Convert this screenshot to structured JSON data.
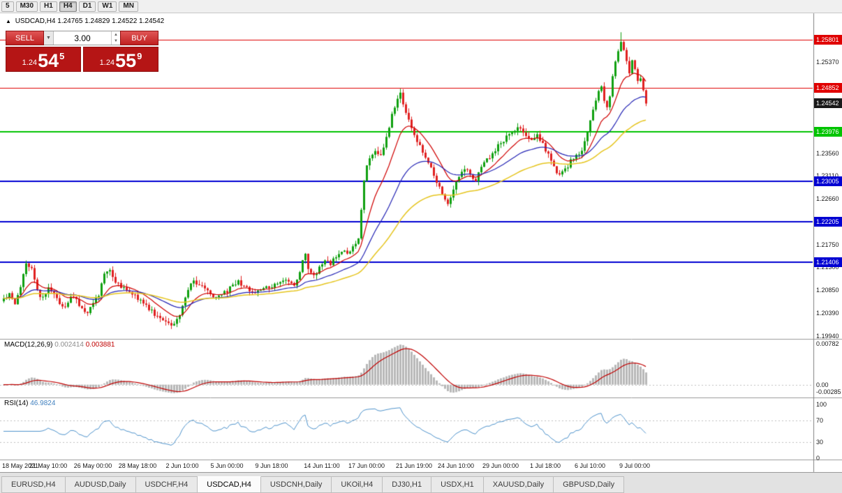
{
  "toolbar": {
    "timeframes": [
      {
        "label": "5",
        "active": false
      },
      {
        "label": "M30",
        "active": false
      },
      {
        "label": "H1",
        "active": false
      },
      {
        "label": "H4",
        "active": true
      },
      {
        "label": "D1",
        "active": false
      },
      {
        "label": "W1",
        "active": false
      },
      {
        "label": "MN",
        "active": false
      }
    ]
  },
  "chart": {
    "title": {
      "collapse_icon": "▲",
      "symbol": "USDCAD,H4",
      "ohlc": "1.24765 1.24829 1.24522 1.24542"
    },
    "trade_panel": {
      "sell_label": "SELL",
      "buy_label": "BUY",
      "volume": "3.00",
      "dropdown_icon": "▼",
      "spin_up_icon": "▲",
      "spin_down_icon": "▼",
      "sell_price": {
        "prefix": "1.24",
        "big": "54",
        "sup": "5"
      },
      "buy_price": {
        "prefix": "1.24",
        "big": "55",
        "sup": "9"
      }
    },
    "levels": [
      {
        "text": "1.25801",
        "v": 1.25801,
        "color": "#e00000",
        "lw": 1,
        "name": "resistance-level-tag"
      },
      {
        "text": "1.24852",
        "v": 1.24852,
        "color": "#e00000",
        "lw": 1,
        "name": "resistance-level-tag"
      },
      {
        "text": "1.24542",
        "v": 1.24542,
        "color": "#1a1a1a",
        "lw": 0,
        "name": "current-price-tag"
      },
      {
        "text": "1.23976",
        "v": 1.23976,
        "color": "#00c400",
        "lw": 2,
        "name": "pivot-level-tag"
      },
      {
        "text": "1.23005",
        "v": 1.23005,
        "color": "#0000d2",
        "lw": 2,
        "name": "support-level-tag"
      },
      {
        "text": "1.22205",
        "v": 1.22205,
        "color": "#0000d2",
        "lw": 2,
        "name": "support-level-tag"
      },
      {
        "text": "1.21406",
        "v": 1.21406,
        "color": "#0000d2",
        "lw": 2,
        "name": "support-level-tag"
      }
    ],
    "price_axis": [
      {
        "text": "1.25370",
        "v": 1.2537
      },
      {
        "text": "1.24010",
        "v": 1.2401
      },
      {
        "text": "1.23560",
        "v": 1.2356
      },
      {
        "text": "1.23110",
        "v": 1.2311
      },
      {
        "text": "1.22660",
        "v": 1.2266
      },
      {
        "text": "1.21750",
        "v": 1.2175
      },
      {
        "text": "1.21300",
        "v": 1.213
      },
      {
        "text": "1.20850",
        "v": 1.2085
      },
      {
        "text": "1.20390",
        "v": 1.2039
      },
      {
        "text": "1.19940",
        "v": 1.1994
      }
    ],
    "x_ticks": [
      {
        "label": "18 May 2021",
        "bar": 0
      },
      {
        "label": "21 May 10:00",
        "bar": 16
      },
      {
        "label": "26 May 00:00",
        "bar": 32
      },
      {
        "label": "28 May 18:00",
        "bar": 48
      },
      {
        "label": "2 Jun 10:00",
        "bar": 64
      },
      {
        "label": "5 Jun 00:00",
        "bar": 80
      },
      {
        "label": "9 Jun 18:00",
        "bar": 96
      },
      {
        "label": "14 Jun 11:00",
        "bar": 114
      },
      {
        "label": "17 Jun 00:00",
        "bar": 130
      },
      {
        "label": "21 Jun 19:00",
        "bar": 147
      },
      {
        "label": "24 Jun 10:00",
        "bar": 162
      },
      {
        "label": "29 Jun 00:00",
        "bar": 178
      },
      {
        "label": "1 Jul 18:00",
        "bar": 194
      },
      {
        "label": "6 Jul 10:00",
        "bar": 210
      },
      {
        "label": "9 Jul 00:00",
        "bar": 226
      }
    ],
    "candle_colors": {
      "up": "#10a010",
      "down": "#e02020"
    },
    "ma_lines": [
      {
        "name": "ma-fast",
        "period": 12,
        "color": "#d00000",
        "lw": 1.2
      },
      {
        "name": "ma-mid",
        "period": 30,
        "color": "#2525b5",
        "lw": 1.2
      },
      {
        "name": "ma-slow",
        "period": 60,
        "color": "#e6c51e",
        "lw": 1.5
      }
    ],
    "candle_gen": {
      "bars": 231,
      "noise": 0.0004,
      "wick": 0.001,
      "seed": 97,
      "spike_bar": 221,
      "spike_extra": 0.0013,
      "anchors": [
        [
          0,
          1.2068
        ],
        [
          2,
          1.2076
        ],
        [
          4,
          1.2058
        ],
        [
          6,
          1.2092
        ],
        [
          8,
          1.214
        ],
        [
          10,
          1.2126
        ],
        [
          12,
          1.2082
        ],
        [
          14,
          1.2068
        ],
        [
          16,
          1.2088
        ],
        [
          18,
          1.2076
        ],
        [
          20,
          1.2058
        ],
        [
          22,
          1.205
        ],
        [
          24,
          1.2072
        ],
        [
          26,
          1.2064
        ],
        [
          28,
          1.205
        ],
        [
          30,
          1.204
        ],
        [
          32,
          1.2056
        ],
        [
          34,
          1.2076
        ],
        [
          36,
          1.212
        ],
        [
          38,
          1.2126
        ],
        [
          40,
          1.2098
        ],
        [
          42,
          1.2092
        ],
        [
          44,
          1.2086
        ],
        [
          46,
          1.2078
        ],
        [
          48,
          1.2068
        ],
        [
          50,
          1.206
        ],
        [
          52,
          1.2048
        ],
        [
          54,
          1.2036
        ],
        [
          56,
          1.2026
        ],
        [
          58,
          1.202
        ],
        [
          60,
          1.2016
        ],
        [
          62,
          1.2024
        ],
        [
          64,
          1.2052
        ],
        [
          66,
          1.2086
        ],
        [
          68,
          1.2102
        ],
        [
          70,
          1.2096
        ],
        [
          72,
          1.2088
        ],
        [
          74,
          1.2076
        ],
        [
          76,
          1.2068
        ],
        [
          78,
          1.2076
        ],
        [
          80,
          1.2082
        ],
        [
          82,
          1.2096
        ],
        [
          84,
          1.2102
        ],
        [
          86,
          1.2092
        ],
        [
          88,
          1.2084
        ],
        [
          90,
          1.208
        ],
        [
          92,
          1.2088
        ],
        [
          94,
          1.2092
        ],
        [
          96,
          1.209
        ],
        [
          98,
          1.2098
        ],
        [
          100,
          1.2106
        ],
        [
          102,
          1.2098
        ],
        [
          104,
          1.2092
        ],
        [
          106,
          1.2122
        ],
        [
          108,
          1.2158
        ],
        [
          109,
          1.2126
        ],
        [
          111,
          1.2112
        ],
        [
          113,
          1.2128
        ],
        [
          115,
          1.2146
        ],
        [
          117,
          1.2138
        ],
        [
          119,
          1.2152
        ],
        [
          121,
          1.2164
        ],
        [
          123,
          1.2156
        ],
        [
          125,
          1.2172
        ],
        [
          127,
          1.2186
        ],
        [
          128,
          1.2242
        ],
        [
          129,
          1.2302
        ],
        [
          130,
          1.2332
        ],
        [
          131,
          1.2346
        ],
        [
          133,
          1.2362
        ],
        [
          135,
          1.235
        ],
        [
          137,
          1.2386
        ],
        [
          139,
          1.243
        ],
        [
          141,
          1.2464
        ],
        [
          142,
          1.2478
        ],
        [
          143,
          1.2454
        ],
        [
          145,
          1.242
        ],
        [
          147,
          1.2392
        ],
        [
          149,
          1.237
        ],
        [
          151,
          1.2348
        ],
        [
          153,
          1.233
        ],
        [
          155,
          1.23
        ],
        [
          157,
          1.2272
        ],
        [
          159,
          1.2258
        ],
        [
          161,
          1.2284
        ],
        [
          163,
          1.2308
        ],
        [
          165,
          1.2326
        ],
        [
          167,
          1.2312
        ],
        [
          169,
          1.2302
        ],
        [
          171,
          1.2326
        ],
        [
          173,
          1.2342
        ],
        [
          175,
          1.2356
        ],
        [
          177,
          1.237
        ],
        [
          179,
          1.2382
        ],
        [
          181,
          1.2392
        ],
        [
          183,
          1.24
        ],
        [
          185,
          1.2408
        ],
        [
          187,
          1.2388
        ],
        [
          189,
          1.2378
        ],
        [
          191,
          1.2392
        ],
        [
          193,
          1.2374
        ],
        [
          195,
          1.2352
        ],
        [
          197,
          1.2328
        ],
        [
          199,
          1.2312
        ],
        [
          201,
          1.2322
        ],
        [
          203,
          1.234
        ],
        [
          205,
          1.2352
        ],
        [
          207,
          1.2362
        ],
        [
          209,
          1.2396
        ],
        [
          211,
          1.244
        ],
        [
          213,
          1.2478
        ],
        [
          214,
          1.249
        ],
        [
          215,
          1.2462
        ],
        [
          216,
          1.2448
        ],
        [
          217,
          1.2472
        ],
        [
          218,
          1.2506
        ],
        [
          219,
          1.2534
        ],
        [
          220,
          1.2556
        ],
        [
          221,
          1.2576
        ],
        [
          222,
          1.256
        ],
        [
          223,
          1.2536
        ],
        [
          224,
          1.2516
        ],
        [
          225,
          1.2542
        ],
        [
          226,
          1.252
        ],
        [
          227,
          1.2496
        ],
        [
          228,
          1.2506
        ],
        [
          229,
          1.2478
        ],
        [
          230,
          1.24542
        ]
      ]
    }
  },
  "macd": {
    "name": "MACD(12,26,9)",
    "value_main": "0.002414",
    "value_signal": "0.003881",
    "fast": 12,
    "slow": 26,
    "signal": 9,
    "axis_top": "0.00782",
    "axis_zero": "0.00",
    "axis_bottom": "-0.00285",
    "hist_color": "#b8b8b8",
    "signal_color": "#c00000"
  },
  "rsi": {
    "name": "RSI(14)",
    "value": "46.9824",
    "period": 14,
    "axis": [
      "100",
      "70",
      "30",
      "0"
    ],
    "levels": [
      70,
      30
    ],
    "color": "#4f94cd"
  },
  "tabs": [
    {
      "label": "EURUSD,H4",
      "active": false
    },
    {
      "label": "AUDUSD,Daily",
      "active": false
    },
    {
      "label": "USDCHF,H4",
      "active": false
    },
    {
      "label": "USDCAD,H4",
      "active": true
    },
    {
      "label": "USDCNH,Daily",
      "active": false
    },
    {
      "label": "UKOil,H4",
      "active": false
    },
    {
      "label": "DJ30,H1",
      "active": false
    },
    {
      "label": "USDX,H1",
      "active": false
    },
    {
      "label": "XAUUSD,Daily",
      "active": false
    },
    {
      "label": "GBPUSD,Daily",
      "active": false
    }
  ]
}
